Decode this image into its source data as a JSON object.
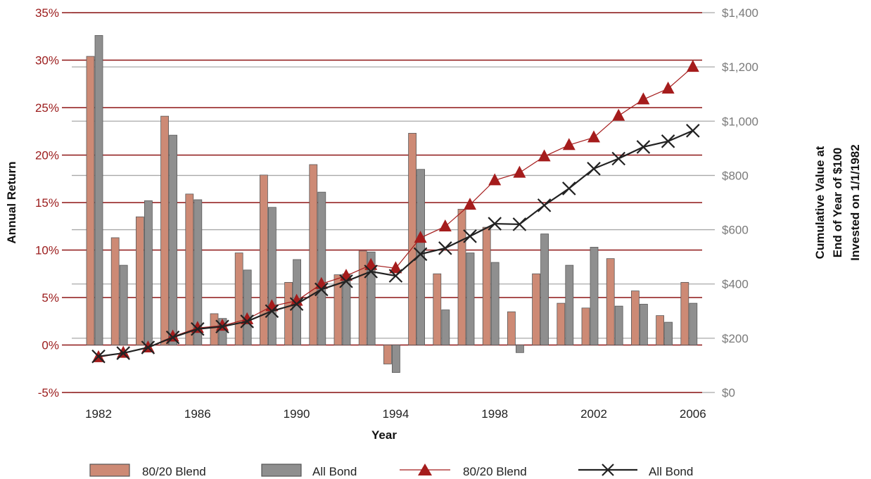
{
  "chart_data": {
    "type": "bar",
    "x": [
      1982,
      1983,
      1984,
      1985,
      1986,
      1987,
      1988,
      1989,
      1990,
      1991,
      1992,
      1993,
      1994,
      1995,
      1996,
      1997,
      1998,
      1999,
      2000,
      2001,
      2002,
      2003,
      2004,
      2005,
      2006
    ],
    "x_tick_labels": [
      "1982",
      "1986",
      "1990",
      "1994",
      "1998",
      "2002",
      "2006"
    ],
    "xlabel": "Year",
    "ylabel_left": "Annual Return",
    "ylabel_right": [
      "Cumulative Value at",
      "End of Year of $100",
      "Invested on 1/1/1982"
    ],
    "ylim_left": [
      -5,
      35
    ],
    "ylim_right": [
      0,
      1400
    ],
    "left_ticks": [
      "-5%",
      "0%",
      "5%",
      "10%",
      "15%",
      "20%",
      "25%",
      "30%",
      "35%"
    ],
    "right_ticks": [
      "$0",
      "$200",
      "$400",
      "$600",
      "$800",
      "$1,000",
      "$1,200",
      "$1,400"
    ],
    "grid": true,
    "legend_position": "bottom",
    "series": [
      {
        "name": "80/20 Blend",
        "kind": "bar",
        "color": "#cd8a75",
        "values": [
          30.4,
          11.3,
          13.5,
          24.1,
          15.9,
          3.3,
          9.7,
          17.9,
          6.6,
          19.0,
          7.4,
          9.9,
          -2.0,
          22.3,
          7.5,
          14.3,
          12.4,
          3.5,
          7.5,
          4.4,
          3.9,
          9.1,
          5.7,
          3.1,
          6.6
        ]
      },
      {
        "name": "All Bond",
        "kind": "bar",
        "color": "#8f8f8f",
        "values": [
          32.6,
          8.4,
          15.2,
          22.1,
          15.3,
          2.8,
          7.9,
          14.5,
          9.0,
          16.1,
          7.5,
          9.8,
          -2.9,
          18.5,
          3.7,
          9.7,
          8.7,
          -0.8,
          11.7,
          8.4,
          10.3,
          4.1,
          4.3,
          2.4,
          4.4
        ]
      },
      {
        "name": "80/20 Blend",
        "kind": "line",
        "marker": "triangle",
        "color": "#a51c1c",
        "values": [
          130,
          146,
          166,
          206,
          238,
          246,
          270,
          318,
          338,
          400,
          430,
          470,
          458,
          570,
          612,
          692,
          782,
          810,
          870,
          912,
          940,
          1020,
          1080,
          1120,
          1200
        ]
      },
      {
        "name": "All Bond",
        "kind": "line",
        "marker": "x",
        "color": "#222222",
        "values": [
          133,
          145,
          166,
          203,
          234,
          243,
          262,
          300,
          326,
          380,
          410,
          446,
          430,
          510,
          532,
          576,
          622,
          620,
          690,
          752,
          825,
          862,
          905,
          926,
          965
        ]
      }
    ]
  }
}
